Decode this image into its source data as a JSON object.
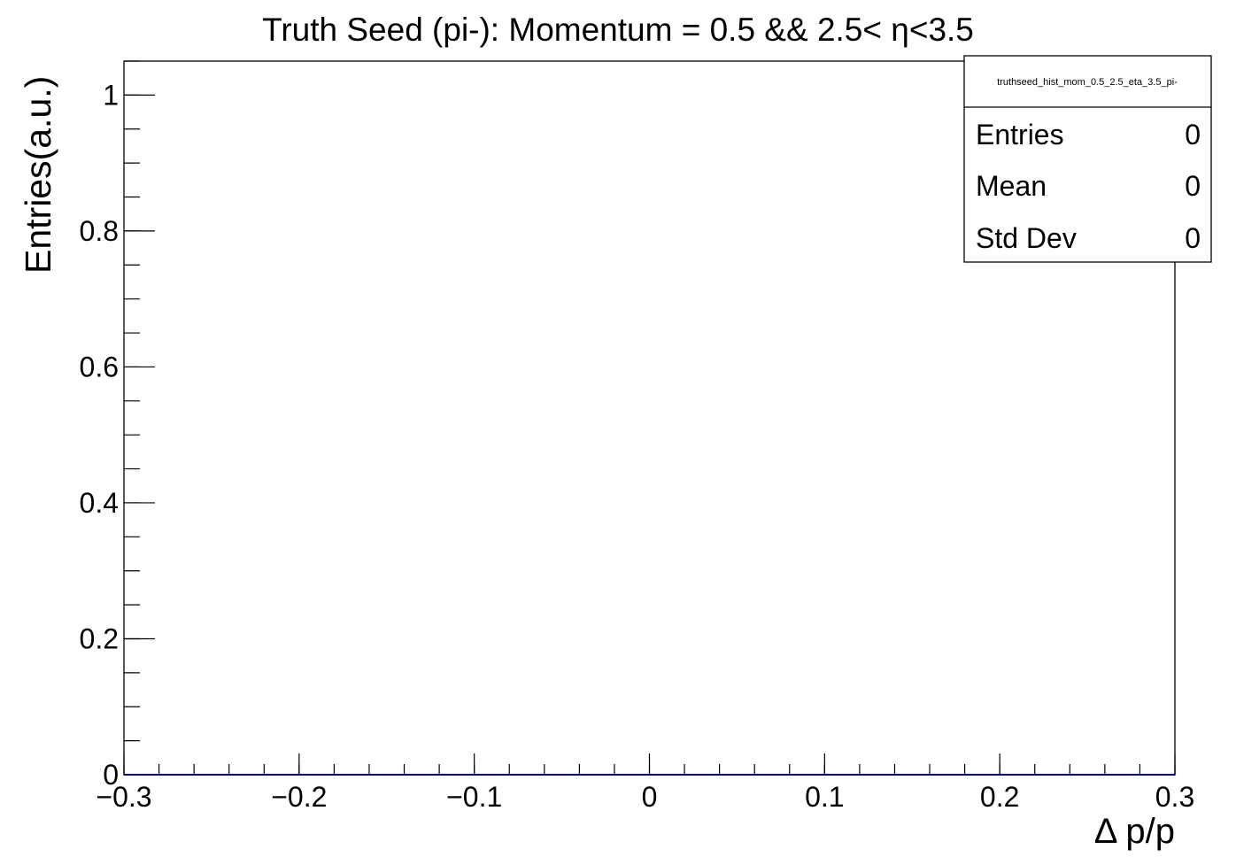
{
  "chart_data": {
    "type": "bar",
    "title": "Truth Seed (pi-): Momentum = 0.5 && 2.5< η<3.5",
    "xlabel": "Δ p/p",
    "ylabel": "Entries(a.u.)",
    "xlim": [
      -0.3,
      0.3
    ],
    "ylim": [
      0,
      1.05
    ],
    "x_ticks": [
      {
        "value": -0.3,
        "label": "−0.3"
      },
      {
        "value": -0.2,
        "label": "−0.2"
      },
      {
        "value": -0.1,
        "label": "−0.1"
      },
      {
        "value": 0,
        "label": "0"
      },
      {
        "value": 0.1,
        "label": "0.1"
      },
      {
        "value": 0.2,
        "label": "0.2"
      },
      {
        "value": 0.3,
        "label": "0.3"
      }
    ],
    "y_ticks": [
      {
        "value": 0,
        "label": "0"
      },
      {
        "value": 0.2,
        "label": "0.2"
      },
      {
        "value": 0.4,
        "label": "0.4"
      },
      {
        "value": 0.6,
        "label": "0.6"
      },
      {
        "value": 0.8,
        "label": "0.8"
      },
      {
        "value": 1,
        "label": "1"
      }
    ],
    "x_minor_step": 0.02,
    "y_minor_step": 0.05,
    "series": [
      {
        "x": [],
        "values": []
      }
    ],
    "grid": false,
    "line_color": "#000000",
    "stats_box": {
      "placement": "top-right",
      "name": "truthseed_hist_mom_0.5_2.5_eta_3.5_pi-",
      "rows": [
        {
          "label": "Entries",
          "value": "0"
        },
        {
          "label": "Mean",
          "value": "0"
        },
        {
          "label": "Std Dev",
          "value": "0"
        }
      ]
    }
  }
}
